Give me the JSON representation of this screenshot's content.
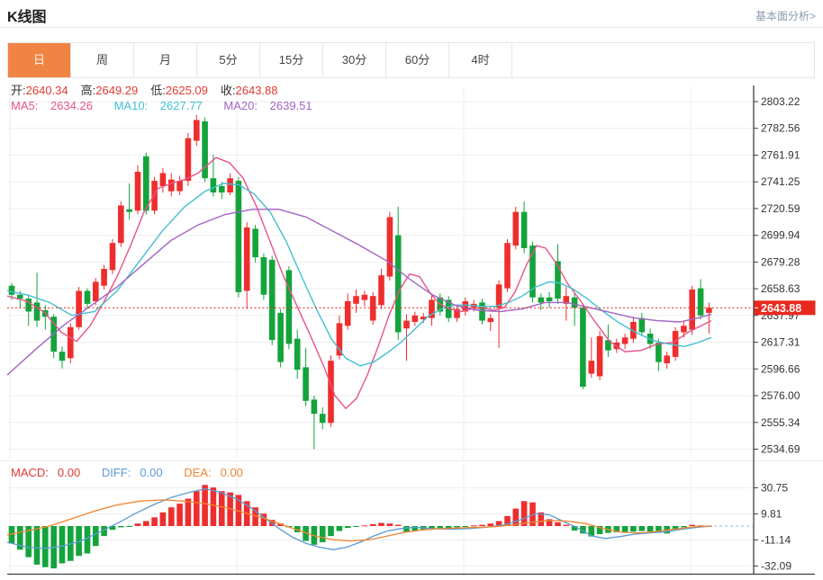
{
  "header": {
    "title": "K线图",
    "link": "基本面分析>"
  },
  "tabs": {
    "items": [
      "日",
      "周",
      "月",
      "5分",
      "15分",
      "30分",
      "60分",
      "4时"
    ],
    "active_index": 0
  },
  "quote": {
    "open_label": "开:",
    "open": "2640.34",
    "high_label": "高:",
    "high": "2649.29",
    "low_label": "低:",
    "low": "2625.09",
    "close_label": "收:",
    "close": "2643.88"
  },
  "ma_info": {
    "ma5_label": "MA5:",
    "ma5": "2634.26",
    "ma10_label": "MA10:",
    "ma10": "2627.77",
    "ma20_label": "MA20:",
    "ma20": "2639.51"
  },
  "macd_info": {
    "macd_label": "MACD:",
    "macd": "0.00",
    "diff_label": "DIFF:",
    "diff": "0.00",
    "dea_label": "DEA:",
    "dea": "0.00"
  },
  "colors": {
    "up": "#ee2e2e",
    "down": "#13a43b",
    "ma5": "#e8538a",
    "ma10": "#43bfd2",
    "ma20": "#a264c4",
    "diff_line": "#5b9bd5",
    "dea_line": "#ee8633",
    "value_red": "#e03b32",
    "tab_active_bg": "#f08445",
    "badge_bg": "#e8291d",
    "grid": "#ededed",
    "axis": "#3f3f3f",
    "label_text": "#333333",
    "zero_dash": "#a8cbe8"
  },
  "chart_data": {
    "type": "candlestick+macd",
    "title": "K线图 (daily)",
    "y_axis_ticks": [
      "2803.22",
      "2782.56",
      "2761.91",
      "2741.25",
      "2720.59",
      "2699.94",
      "2679.28",
      "2658.63",
      "2637.97",
      "2617.31",
      "2596.66",
      "2576.00",
      "2555.34",
      "2534.69"
    ],
    "y_range": [
      2534.69,
      2803.22
    ],
    "price_line_value": 2643.88,
    "price_badge_label": "2643.88",
    "grid": true,
    "legend_position": "top-left",
    "candles_ohlc": [
      [
        2661,
        2663,
        2650,
        2654
      ],
      [
        2654,
        2657,
        2644,
        2651
      ],
      [
        2651,
        2653,
        2630,
        2641
      ],
      [
        2648,
        2671,
        2629,
        2634
      ],
      [
        2642,
        2646,
        2627,
        2637
      ],
      [
        2637,
        2639,
        2605,
        2610
      ],
      [
        2610,
        2614,
        2597,
        2603
      ],
      [
        2605,
        2632,
        2601,
        2629
      ],
      [
        2629,
        2660,
        2627,
        2657
      ],
      [
        2657,
        2659,
        2643,
        2647
      ],
      [
        2649,
        2667,
        2646,
        2664
      ],
      [
        2661,
        2677,
        2658,
        2674
      ],
      [
        2673,
        2697,
        2670,
        2694
      ],
      [
        2694,
        2726,
        2691,
        2723
      ],
      [
        2720,
        2740,
        2712,
        2718
      ],
      [
        2719,
        2754,
        2716,
        2749
      ],
      [
        2761,
        2764,
        2716,
        2719
      ],
      [
        2719,
        2745,
        2716,
        2742
      ],
      [
        2738,
        2752,
        2733,
        2748
      ],
      [
        2734,
        2748,
        2730,
        2743
      ],
      [
        2734,
        2746,
        2731,
        2742
      ],
      [
        2742,
        2779,
        2738,
        2775
      ],
      [
        2773,
        2793,
        2769,
        2789
      ],
      [
        2788,
        2791,
        2741,
        2744
      ],
      [
        2744,
        2762,
        2730,
        2733
      ],
      [
        2738,
        2741,
        2728,
        2733
      ],
      [
        2733,
        2748,
        2731,
        2744
      ],
      [
        2742,
        2745,
        2652,
        2656
      ],
      [
        2657,
        2710,
        2643,
        2706
      ],
      [
        2705,
        2708,
        2679,
        2683
      ],
      [
        2683,
        2686,
        2650,
        2654
      ],
      [
        2681,
        2684,
        2615,
        2619
      ],
      [
        2640,
        2643,
        2598,
        2602
      ],
      [
        2673,
        2676,
        2612,
        2616
      ],
      [
        2620,
        2627,
        2589,
        2596
      ],
      [
        2598,
        2613,
        2568,
        2572
      ],
      [
        2573,
        2576,
        2534.7,
        2562
      ],
      [
        2562,
        2567,
        2550,
        2555
      ],
      [
        2555,
        2607,
        2552,
        2603
      ],
      [
        2607,
        2638,
        2604,
        2632
      ],
      [
        2630,
        2655,
        2627,
        2649
      ],
      [
        2647,
        2658,
        2640,
        2653
      ],
      [
        2650,
        2657,
        2645,
        2654
      ],
      [
        2634,
        2656,
        2631,
        2653
      ],
      [
        2646,
        2674,
        2643,
        2669
      ],
      [
        2668,
        2718,
        2665,
        2714
      ],
      [
        2700,
        2722,
        2619,
        2625
      ],
      [
        2628,
        2639,
        2603,
        2634
      ],
      [
        2633,
        2641,
        2630,
        2638
      ],
      [
        2635,
        2640,
        2632,
        2637
      ],
      [
        2636,
        2655,
        2630,
        2650
      ],
      [
        2652,
        2655,
        2638,
        2641
      ],
      [
        2650,
        2653,
        2633,
        2636
      ],
      [
        2636,
        2646,
        2633,
        2643
      ],
      [
        2641,
        2652,
        2638,
        2649
      ],
      [
        2644,
        2650,
        2641,
        2647
      ],
      [
        2648,
        2651,
        2631,
        2634
      ],
      [
        2633,
        2639,
        2626,
        2636
      ],
      [
        2644,
        2665,
        2613,
        2662
      ],
      [
        2659,
        2697,
        2656,
        2694
      ],
      [
        2692,
        2722,
        2689,
        2718
      ],
      [
        2718,
        2726,
        2686,
        2690
      ],
      [
        2692,
        2695,
        2648,
        2652
      ],
      [
        2652,
        2655,
        2642,
        2648
      ],
      [
        2652,
        2656,
        2644,
        2649
      ],
      [
        2680,
        2693,
        2647,
        2651
      ],
      [
        2647,
        2660,
        2634,
        2653
      ],
      [
        2652,
        2655,
        2630,
        2644
      ],
      [
        2644,
        2647,
        2581,
        2583
      ],
      [
        2593,
        2621,
        2590,
        2603
      ],
      [
        2591,
        2626,
        2588,
        2622
      ],
      [
        2619,
        2631,
        2606,
        2611
      ],
      [
        2612,
        2620,
        2609,
        2617
      ],
      [
        2616,
        2624,
        2612,
        2621
      ],
      [
        2620,
        2637,
        2617,
        2633
      ],
      [
        2636,
        2640,
        2622,
        2625
      ],
      [
        2624,
        2628,
        2612,
        2616
      ],
      [
        2617,
        2620,
        2595,
        2602
      ],
      [
        2601,
        2610,
        2597,
        2607
      ],
      [
        2606,
        2629,
        2603,
        2626
      ],
      [
        2625,
        2634,
        2621,
        2630
      ],
      [
        2627,
        2661,
        2623,
        2658
      ],
      [
        2659,
        2666,
        2635,
        2638
      ],
      [
        2640,
        2648,
        2624,
        2643.88
      ]
    ],
    "ma5_points": [
      [
        8,
        2653
      ],
      [
        30,
        2649
      ],
      [
        50,
        2640
      ],
      [
        68,
        2625
      ],
      [
        85,
        2618
      ],
      [
        100,
        2630
      ],
      [
        115,
        2648
      ],
      [
        130,
        2668
      ],
      [
        145,
        2692
      ],
      [
        160,
        2718
      ],
      [
        175,
        2736
      ],
      [
        190,
        2740
      ],
      [
        205,
        2743
      ],
      [
        220,
        2748
      ],
      [
        240,
        2760
      ],
      [
        255,
        2756
      ],
      [
        270,
        2744
      ],
      [
        285,
        2722
      ],
      [
        300,
        2695
      ],
      [
        315,
        2668
      ],
      [
        330,
        2645
      ],
      [
        345,
        2622
      ],
      [
        360,
        2598
      ],
      [
        372,
        2576
      ],
      [
        384,
        2566
      ],
      [
        396,
        2574
      ],
      [
        408,
        2592
      ],
      [
        420,
        2614
      ],
      [
        432,
        2638
      ],
      [
        444,
        2658
      ],
      [
        455,
        2670
      ],
      [
        466,
        2668
      ],
      [
        477,
        2656
      ],
      [
        488,
        2647
      ],
      [
        500,
        2643
      ],
      [
        512,
        2641
      ],
      [
        524,
        2643
      ],
      [
        536,
        2644
      ],
      [
        548,
        2642
      ],
      [
        560,
        2644
      ],
      [
        572,
        2656
      ],
      [
        584,
        2676
      ],
      [
        596,
        2692
      ],
      [
        606,
        2690
      ],
      [
        618,
        2678
      ],
      [
        630,
        2663
      ],
      [
        645,
        2649
      ],
      [
        660,
        2634
      ],
      [
        677,
        2618
      ],
      [
        694,
        2610
      ],
      [
        712,
        2611
      ],
      [
        730,
        2616
      ],
      [
        748,
        2617
      ],
      [
        764,
        2625
      ],
      [
        790,
        2634
      ]
    ],
    "ma10_points": [
      [
        8,
        2657
      ],
      [
        30,
        2654
      ],
      [
        55,
        2648
      ],
      [
        80,
        2638
      ],
      [
        105,
        2641
      ],
      [
        130,
        2657
      ],
      [
        155,
        2680
      ],
      [
        180,
        2703
      ],
      [
        205,
        2722
      ],
      [
        228,
        2734
      ],
      [
        248,
        2740
      ],
      [
        265,
        2739
      ],
      [
        282,
        2732
      ],
      [
        300,
        2718
      ],
      [
        318,
        2695
      ],
      [
        335,
        2668
      ],
      [
        352,
        2642
      ],
      [
        368,
        2620
      ],
      [
        384,
        2605
      ],
      [
        400,
        2599
      ],
      [
        415,
        2602
      ],
      [
        430,
        2609
      ],
      [
        445,
        2617
      ],
      [
        460,
        2627
      ],
      [
        475,
        2637
      ],
      [
        490,
        2643
      ],
      [
        505,
        2646
      ],
      [
        520,
        2646
      ],
      [
        535,
        2645
      ],
      [
        550,
        2645
      ],
      [
        565,
        2648
      ],
      [
        580,
        2653
      ],
      [
        595,
        2660
      ],
      [
        610,
        2664
      ],
      [
        622,
        2663
      ],
      [
        635,
        2659
      ],
      [
        652,
        2651
      ],
      [
        670,
        2641
      ],
      [
        688,
        2632
      ],
      [
        706,
        2625
      ],
      [
        724,
        2619
      ],
      [
        742,
        2616
      ],
      [
        760,
        2614
      ],
      [
        775,
        2617
      ],
      [
        790,
        2621
      ]
    ],
    "ma20_points": [
      [
        8,
        2592
      ],
      [
        40,
        2612
      ],
      [
        70,
        2630
      ],
      [
        100,
        2645
      ],
      [
        130,
        2660
      ],
      [
        160,
        2678
      ],
      [
        190,
        2696
      ],
      [
        220,
        2708
      ],
      [
        250,
        2716
      ],
      [
        280,
        2720
      ],
      [
        310,
        2720
      ],
      [
        340,
        2714
      ],
      [
        370,
        2703
      ],
      [
        400,
        2692
      ],
      [
        430,
        2680
      ],
      [
        455,
        2666
      ],
      [
        480,
        2654
      ],
      [
        505,
        2646
      ],
      [
        530,
        2642
      ],
      [
        555,
        2641
      ],
      [
        580,
        2643
      ],
      [
        605,
        2648
      ],
      [
        630,
        2648
      ],
      [
        655,
        2644
      ],
      [
        680,
        2640
      ],
      [
        705,
        2636
      ],
      [
        730,
        2634
      ],
      [
        755,
        2633
      ],
      [
        775,
        2636
      ],
      [
        790,
        2639
      ]
    ],
    "macd": {
      "y_axis_ticks": [
        "30.75",
        "9.81",
        "-11.14",
        "-32.09"
      ],
      "y_range": [
        -32.09,
        30.75
      ],
      "histogram": [
        -14,
        -19,
        -25,
        -31,
        -33,
        -34,
        -30,
        -28,
        -24,
        -22,
        -16,
        -8,
        -3,
        -1,
        -0.5,
        2,
        4,
        7,
        11,
        15,
        18,
        22,
        28,
        33,
        31,
        28,
        27,
        25,
        20,
        15,
        10,
        5,
        2,
        -1,
        -5,
        -12,
        -15,
        -13,
        -8,
        -4,
        -1.5,
        -0.5,
        0.5,
        1.5,
        2.5,
        2,
        1,
        -5,
        -4,
        -3,
        -2.5,
        -2,
        -1.5,
        -1,
        -0.5,
        0.5,
        1,
        2,
        4,
        8,
        14,
        20,
        19,
        11,
        5.5,
        3,
        1,
        -3.6,
        -6,
        -8.4,
        -6.5,
        -5.5,
        -5,
        -4.8,
        -4.5,
        -4,
        -4.5,
        -5.5,
        -6,
        -3,
        -1,
        1,
        0.5,
        0.2
      ],
      "diff_points": [
        [
          8,
          -13
        ],
        [
          30,
          -17
        ],
        [
          50,
          -18
        ],
        [
          70,
          -16
        ],
        [
          90,
          -12
        ],
        [
          110,
          -5
        ],
        [
          130,
          2
        ],
        [
          150,
          10
        ],
        [
          170,
          17
        ],
        [
          190,
          23
        ],
        [
          210,
          27
        ],
        [
          228,
          30
        ],
        [
          245,
          27
        ],
        [
          262,
          22
        ],
        [
          278,
          15
        ],
        [
          295,
          6
        ],
        [
          310,
          -2
        ],
        [
          325,
          -9
        ],
        [
          340,
          -14
        ],
        [
          355,
          -17
        ],
        [
          370,
          -19
        ],
        [
          385,
          -17
        ],
        [
          400,
          -13
        ],
        [
          415,
          -8
        ],
        [
          430,
          -4
        ],
        [
          445,
          -2
        ],
        [
          460,
          -1
        ],
        [
          480,
          -2
        ],
        [
          500,
          -2.5
        ],
        [
          520,
          -2
        ],
        [
          540,
          -1
        ],
        [
          560,
          1
        ],
        [
          578,
          5
        ],
        [
          595,
          10
        ],
        [
          610,
          9
        ],
        [
          625,
          4
        ],
        [
          640,
          -1
        ],
        [
          658,
          -8
        ],
        [
          672,
          -10
        ],
        [
          688,
          -8.5
        ],
        [
          705,
          -6.5
        ],
        [
          722,
          -5.5
        ],
        [
          740,
          -4.5
        ],
        [
          758,
          -2.5
        ],
        [
          775,
          -1
        ],
        [
          790,
          0
        ]
      ],
      "dea_points": [
        [
          8,
          -7
        ],
        [
          30,
          -4
        ],
        [
          55,
          0
        ],
        [
          80,
          6
        ],
        [
          105,
          12
        ],
        [
          130,
          17
        ],
        [
          155,
          20
        ],
        [
          180,
          21
        ],
        [
          205,
          20
        ],
        [
          228,
          18
        ],
        [
          250,
          15
        ],
        [
          270,
          11
        ],
        [
          290,
          7
        ],
        [
          310,
          2
        ],
        [
          330,
          -3
        ],
        [
          350,
          -8
        ],
        [
          370,
          -11
        ],
        [
          390,
          -12
        ],
        [
          410,
          -11
        ],
        [
          430,
          -8
        ],
        [
          450,
          -5
        ],
        [
          470,
          -3
        ],
        [
          490,
          -2
        ],
        [
          510,
          -1.5
        ],
        [
          530,
          -1
        ],
        [
          550,
          -0.5
        ],
        [
          570,
          1
        ],
        [
          590,
          3
        ],
        [
          610,
          4.5
        ],
        [
          630,
          4
        ],
        [
          650,
          2
        ],
        [
          670,
          -2
        ],
        [
          690,
          -5
        ],
        [
          706,
          -5.5
        ],
        [
          722,
          -5
        ],
        [
          738,
          -3.5
        ],
        [
          755,
          -2
        ],
        [
          772,
          -0.5
        ],
        [
          790,
          0
        ]
      ]
    }
  }
}
